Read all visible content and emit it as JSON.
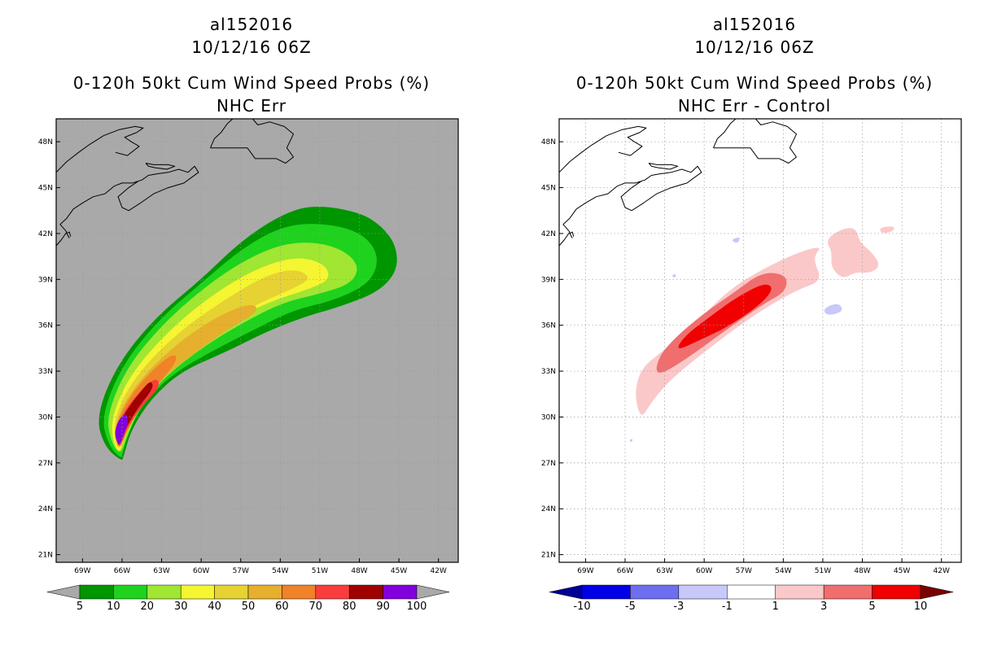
{
  "panels": [
    {
      "title": "al152016",
      "datetime": "10/12/16 06Z",
      "subtitle": "0-120h 50kt Cum Wind Speed Probs (%)",
      "field": "NHC Err",
      "background": "#a9a9a9"
    },
    {
      "title": "al152016",
      "datetime": "10/12/16 06Z",
      "subtitle": "0-120h 50kt Cum Wind Speed Probs (%)",
      "field": "NHC Err - Control",
      "background": "#ffffff"
    }
  ],
  "map": {
    "lat_ticks": [
      "21N",
      "24N",
      "27N",
      "30N",
      "33N",
      "36N",
      "39N",
      "42N",
      "45N",
      "48N"
    ],
    "lon_ticks": [
      "69W",
      "66W",
      "63W",
      "60W",
      "57W",
      "54W",
      "51W",
      "48W",
      "45W",
      "42W"
    ],
    "lat_range": [
      20.5,
      49.5
    ],
    "lon_range": [
      71,
      40.5
    ]
  },
  "colorbars": [
    {
      "labels": [
        "5",
        "10",
        "20",
        "30",
        "40",
        "50",
        "60",
        "70",
        "80",
        "90",
        "100"
      ],
      "under_color": "#a9a9a9",
      "over_color": "#a9a9a9",
      "colors": [
        "#009600",
        "#1ed21e",
        "#a0e632",
        "#f5f532",
        "#e6d232",
        "#e6af2d",
        "#f08228",
        "#fa3c3c",
        "#a00000",
        "#8200dc"
      ]
    },
    {
      "labels": [
        "-10",
        "-5",
        "-3",
        "-1",
        "1",
        "3",
        "5",
        "10"
      ],
      "under_color": "#000096",
      "over_color": "#780000",
      "colors": [
        "#0000e6",
        "#6e6ef0",
        "#c8c8fa",
        "#ffffff",
        "#fac8c8",
        "#f06e6e",
        "#f00000"
      ]
    }
  ]
}
